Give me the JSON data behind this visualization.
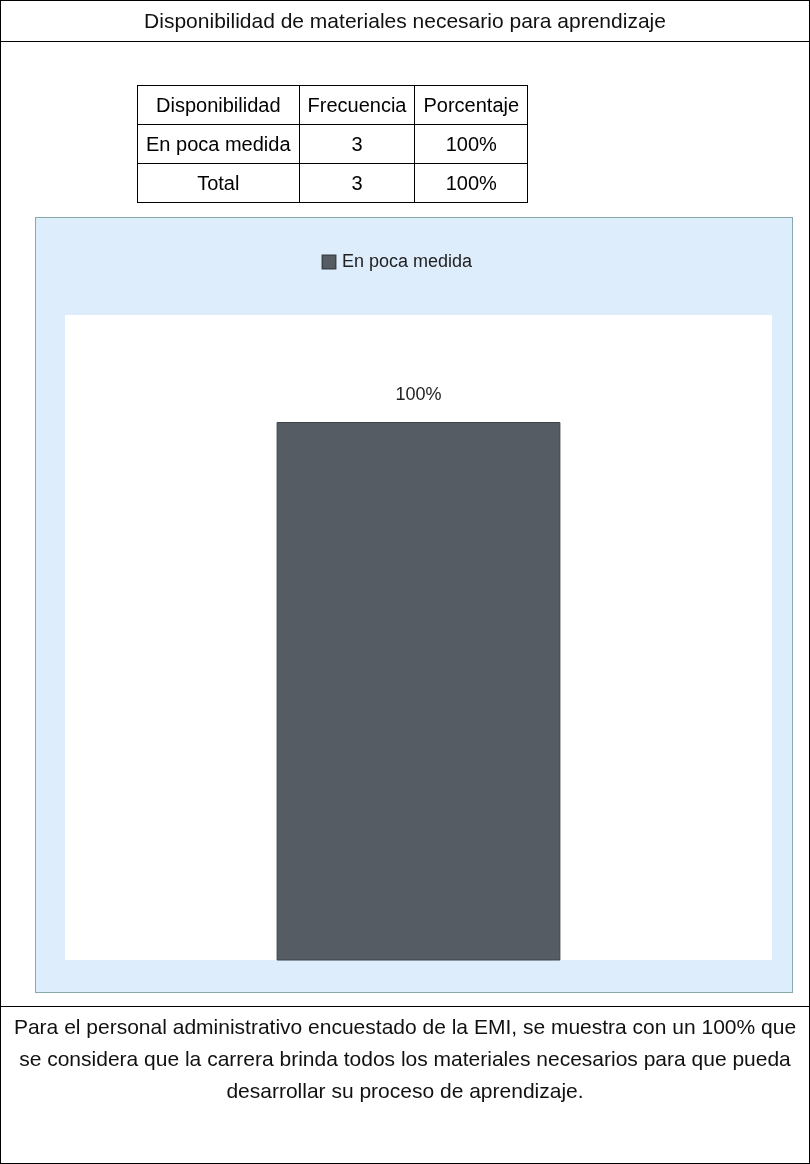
{
  "chart_data": {
    "type": "bar",
    "title": "Disponibilidad de materiales necesario para aprendizaje",
    "categories": [
      null
    ],
    "series": [
      {
        "name": "En poca medida",
        "color": "#565c63",
        "values": [
          100
        ],
        "value_labels": [
          "100%"
        ]
      }
    ],
    "ylim": [
      0,
      120
    ],
    "tick_labels": false,
    "legend": "top",
    "annotations": [
      "Disponibilidad",
      "Frecuencia",
      "Porcentaje",
      "En poca medida",
      "3",
      "100%",
      "Total",
      "3",
      "100%",
      "Para el personal administrativo encuestado de la EMI, se muestra con un 100% que se considera que la carrera brinda todos los materiales necesarios para que pueda desarrollar su proceso de aprendizaje."
    ]
  }
}
